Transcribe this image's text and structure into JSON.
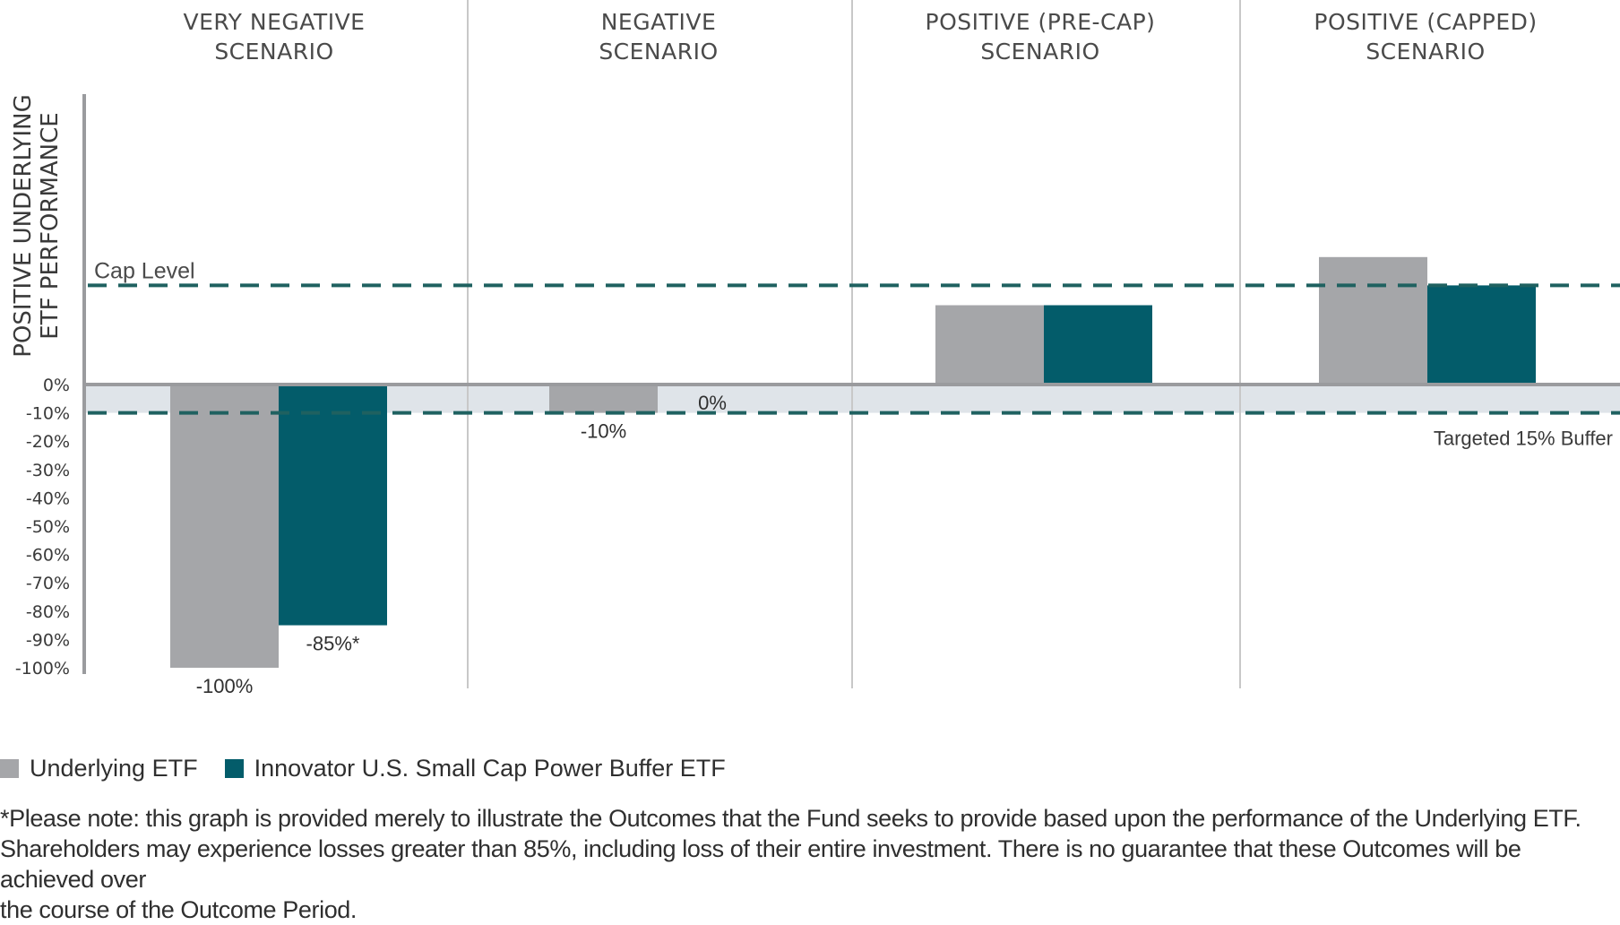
{
  "chart_data": {
    "type": "bar",
    "title": "",
    "ylabel": "POSITIVE UNDERLYING ETF PERFORMANCE",
    "ylabel_lines": [
      "POSITIVE UNDERLYING",
      "ETF PERFORMANCE"
    ],
    "xlabel": "",
    "ylim": [
      -100,
      80
    ],
    "grid": false,
    "legend_placement": "bottom-left",
    "y_ticks": [
      0,
      -10,
      -20,
      -30,
      -40,
      -50,
      -60,
      -70,
      -80,
      -90,
      -100
    ],
    "y_tick_labels": [
      "0%",
      "-10%",
      "-20%",
      "-30%",
      "-40%",
      "-50%",
      "-60%",
      "-70%",
      "-80%",
      "-90%",
      "-100%"
    ],
    "categories": [
      {
        "lines": [
          "VERY NEGATIVE",
          "SCENARIO"
        ]
      },
      {
        "lines": [
          "NEGATIVE",
          "SCENARIO"
        ]
      },
      {
        "lines": [
          "POSITIVE (PRE-CAP)",
          "SCENARIO"
        ]
      },
      {
        "lines": [
          "POSITIVE (CAPPED)",
          "SCENARIO"
        ]
      }
    ],
    "series": [
      {
        "name": "Underlying ETF",
        "color": "#a5a6a9",
        "values": [
          -100,
          -10,
          28,
          45
        ],
        "labels": [
          "-100%",
          "-10%",
          "",
          ""
        ]
      },
      {
        "name": "Innovator U.S. Small Cap Power Buffer ETF",
        "color": "#035c6a",
        "values": [
          -85,
          0,
          28,
          35
        ],
        "labels": [
          "-85%*",
          "0%",
          "",
          ""
        ]
      }
    ],
    "reference_lines": [
      {
        "name": "cap-level",
        "value": 35,
        "label": "Cap Level",
        "style": "dashed",
        "color": "#1f6160"
      },
      {
        "name": "buffer-floor",
        "value": -10,
        "label": "Targeted 15% Buffer",
        "style": "dashed",
        "color": "#1f6160"
      }
    ],
    "buffer_band": {
      "from": 0,
      "to": -10,
      "color": "#dfe4e9"
    },
    "axis_color": "#9a9b9e",
    "divider_color": "#c8c8c8"
  },
  "legend": {
    "items": [
      {
        "label": "Underlying ETF",
        "color": "#a5a6a9"
      },
      {
        "label": "Innovator U.S. Small Cap Power Buffer ETF",
        "color": "#035c6a"
      }
    ]
  },
  "footnote": {
    "lines": [
      "*Please note: this graph is provided merely to illustrate the Outcomes that the Fund seeks to provide based upon the performance of the Underlying ETF.",
      "Shareholders may experience losses greater than 85%, including loss of their entire investment. There is no guarantee that these Outcomes will be achieved over",
      "the course of the Outcome Period."
    ]
  }
}
